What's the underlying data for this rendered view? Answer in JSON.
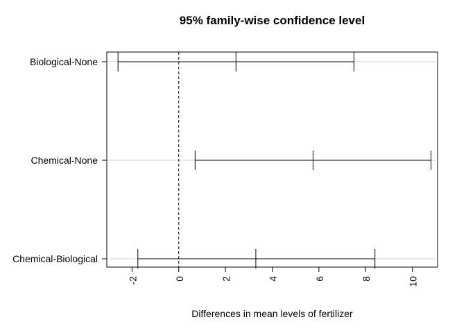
{
  "chart_data": {
    "type": "interval",
    "title": "95% family-wise confidence level",
    "xlabel": "Differences in mean levels of fertilizer",
    "ylabel": "",
    "xlim": [
      -3.08,
      11.08
    ],
    "x_ticks": [
      -2,
      0,
      2,
      4,
      6,
      8,
      10
    ],
    "x_tick_labels": [
      "-2",
      "0",
      "2",
      "4",
      "6",
      "8",
      "10"
    ],
    "reference_line": 0,
    "grid": true,
    "comparisons": [
      {
        "label": "Biological-None",
        "lwr": -2.6,
        "diff": 2.45,
        "upr": 7.5
      },
      {
        "label": "Chemical-None",
        "lwr": 0.7,
        "diff": 5.75,
        "upr": 10.8
      },
      {
        "label": "Chemical-Biological",
        "lwr": -1.75,
        "diff": 3.3,
        "upr": 8.4
      }
    ]
  }
}
